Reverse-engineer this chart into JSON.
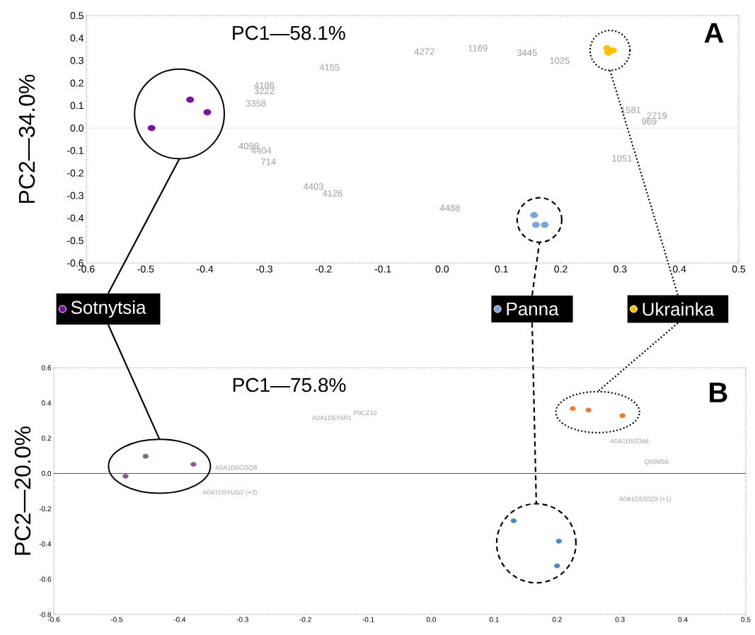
{
  "chart_data": [
    {
      "type": "scatter",
      "title": "A",
      "xlabel": "PC1—58.1%",
      "ylabel": "PC2—34.0%",
      "xlim": [
        -0.6,
        0.5
      ],
      "ylim": [
        -0.6,
        0.5
      ],
      "xticks": [
        -0.6,
        -0.5,
        -0.4,
        -0.3,
        -0.2,
        -0.1,
        {
          "value": 0,
          "label": "0.0"
        },
        0.1,
        0.2,
        0.3,
        0.4,
        0.5
      ],
      "yticks": [
        -0.6,
        -0.5,
        -0.4,
        -0.3,
        -0.2,
        -0.1,
        {
          "value": 0,
          "label": "0.0"
        },
        0.1,
        0.2,
        0.3,
        0.4,
        0.5
      ],
      "marker": "circle",
      "legend": "bottom",
      "ref_lines": [
        {
          "axis": "y",
          "value": 0,
          "color": "#e6e6e6"
        }
      ],
      "series": [
        {
          "name": "Sotnytsia",
          "color": "#7a0ea6",
          "x": [
            -0.49,
            -0.425,
            -0.396
          ],
          "values": [
            0.0,
            0.126,
            0.07
          ]
        },
        {
          "name": "Panna",
          "color": "#7ba4dc",
          "x": [
            0.155,
            0.158,
            0.173
          ],
          "values": [
            -0.387,
            -0.43,
            -0.43
          ]
        },
        {
          "name": "Ukrainka",
          "color": "#ffc000",
          "x": [
            0.278,
            0.288,
            0.28
          ],
          "values": [
            0.355,
            0.345,
            0.335
          ]
        }
      ],
      "annotations": [
        "4155",
        "4272",
        "1169",
        "3445",
        "1025",
        "4186",
        "3222",
        "3358",
        "4099",
        "4404",
        "714",
        "4403",
        "4126",
        "4488",
        "1581",
        "2719",
        "969",
        "1051"
      ]
    },
    {
      "type": "scatter",
      "title": "B",
      "xlabel": "PC1—75.8%",
      "ylabel": "PC2—20.0%",
      "xlim": [
        -0.6,
        0.5
      ],
      "ylim": [
        -0.8,
        0.6
      ],
      "xticks": [
        -0.6,
        -0.5,
        -0.4,
        -0.3,
        -0.2,
        -0.1,
        {
          "value": 0,
          "label": "0.0"
        },
        0.1,
        0.2,
        0.3,
        0.4,
        0.5
      ],
      "yticks": [
        -0.8,
        -0.6,
        -0.4,
        -0.2,
        {
          "value": 0,
          "label": "0.0"
        },
        0.2,
        0.4,
        0.6
      ],
      "marker": "circle",
      "ref_lines": [
        {
          "axis": "y",
          "value": 0,
          "color": "#505050"
        }
      ],
      "series": [
        {
          "color": "#8e5a95",
          "x": [
            -0.486,
            -0.454,
            -0.378
          ],
          "values": [
            -0.016,
            0.098,
            0.052
          ]
        },
        {
          "color": "#4a86c8",
          "x": [
            0.131,
            0.203,
            0.2
          ],
          "values": [
            -0.268,
            -0.384,
            -0.524
          ]
        },
        {
          "color": "#f07a20",
          "x": [
            0.225,
            0.25,
            0.304
          ],
          "values": [
            0.368,
            0.36,
            0.328
          ]
        }
      ],
      "annotations": [
        "A0A1D5Y5R1",
        "P0CZ10",
        "A0A1D6CGQ8",
        "A0A1D5YUG2 (+3)",
        "A0A1D5S346",
        "Q00M56",
        "A0A1D5S0Z9 (+1)"
      ]
    }
  ]
}
